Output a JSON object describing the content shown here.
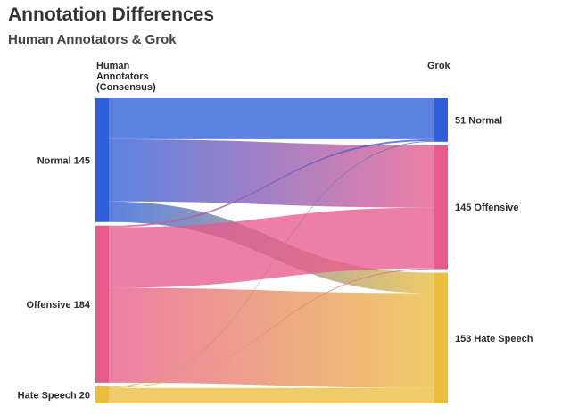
{
  "title": "Annotation Differences",
  "subtitle": "Human Annotators & Grok",
  "chart_data": {
    "type": "sankey",
    "left_header_lines": [
      "Human",
      "Annotators",
      "(Consensus)"
    ],
    "right_header": "Grok",
    "left_nodes": [
      {
        "id": "h_normal",
        "label": "Normal",
        "value": 145,
        "color": "#2e5fd9"
      },
      {
        "id": "h_offensive",
        "label": "Offensive",
        "value": 184,
        "color": "#e85a8c"
      },
      {
        "id": "h_hate",
        "label": "Hate Speech",
        "value": 20,
        "color": "#ebbd3d"
      }
    ],
    "right_nodes": [
      {
        "id": "g_normal",
        "label": "Normal",
        "value": 51,
        "color": "#2e5fd9"
      },
      {
        "id": "g_offensive",
        "label": "Offensive",
        "value": 145,
        "color": "#e85a8c"
      },
      {
        "id": "g_hate",
        "label": "Hate Speech",
        "value": 153,
        "color": "#ebbd3d"
      }
    ],
    "flows": [
      {
        "source": "h_normal",
        "target": "g_normal",
        "value": 48
      },
      {
        "source": "h_normal",
        "target": "g_offensive",
        "value": 73
      },
      {
        "source": "h_normal",
        "target": "g_hate",
        "value": 24
      },
      {
        "source": "h_offensive",
        "target": "g_normal",
        "value": 2
      },
      {
        "source": "h_offensive",
        "target": "g_offensive",
        "value": 71
      },
      {
        "source": "h_offensive",
        "target": "g_hate",
        "value": 111
      },
      {
        "source": "h_hate",
        "target": "g_normal",
        "value": 1
      },
      {
        "source": "h_hate",
        "target": "g_offensive",
        "value": 1
      },
      {
        "source": "h_hate",
        "target": "g_hate",
        "value": 18
      }
    ]
  }
}
